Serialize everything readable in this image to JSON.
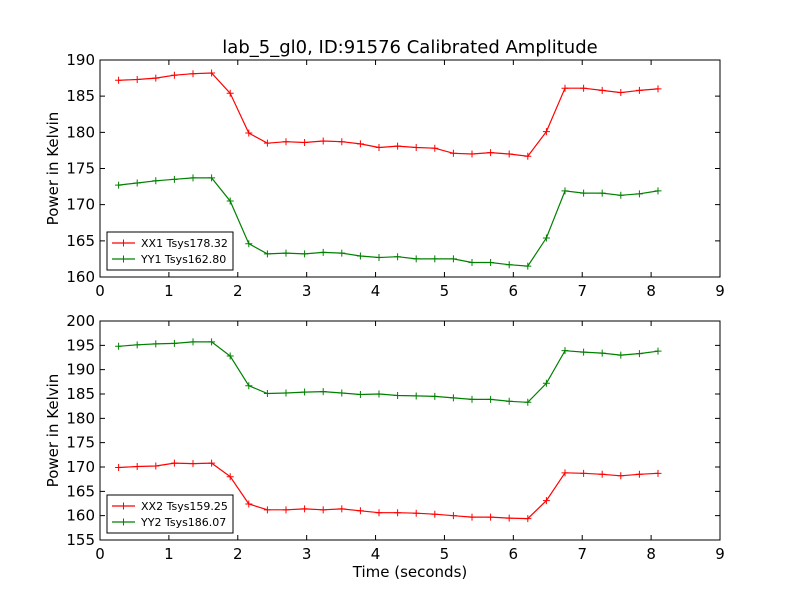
{
  "figure": {
    "title": "lab_5_gl0, ID:91576 Calibrated Amplitude",
    "xlabel": "Time (seconds)"
  },
  "chart_data": [
    {
      "type": "line",
      "ylabel": "Power in Kelvin",
      "xlim": [
        0,
        9
      ],
      "ylim": [
        160,
        190
      ],
      "xticks": [
        0,
        1,
        2,
        3,
        4,
        5,
        6,
        7,
        8,
        9
      ],
      "yticks": [
        160,
        165,
        170,
        175,
        180,
        185,
        190
      ],
      "legend_position": "lower-left",
      "x": [
        0.27,
        0.54,
        0.81,
        1.08,
        1.35,
        1.62,
        1.89,
        2.16,
        2.43,
        2.7,
        2.97,
        3.24,
        3.51,
        3.78,
        4.05,
        4.32,
        4.59,
        4.86,
        5.13,
        5.4,
        5.67,
        5.94,
        6.21,
        6.48,
        6.75,
        7.02,
        7.29,
        7.56,
        7.83,
        8.1
      ],
      "series": [
        {
          "name": "XX1 Tsys178.32",
          "color": "#ff0000",
          "values": [
            187.2,
            187.3,
            187.5,
            187.9,
            188.1,
            188.2,
            185.4,
            179.9,
            178.5,
            178.7,
            178.6,
            178.8,
            178.7,
            178.4,
            177.9,
            178.1,
            177.9,
            177.8,
            177.1,
            177.0,
            177.2,
            177.0,
            176.7,
            180.1,
            186.1,
            186.1,
            185.8,
            185.5,
            185.8,
            186.0
          ]
        },
        {
          "name": "YY1 Tsys162.80",
          "color": "#008000",
          "values": [
            172.7,
            173.0,
            173.3,
            173.5,
            173.7,
            173.7,
            170.5,
            164.6,
            163.2,
            163.3,
            163.2,
            163.4,
            163.3,
            162.9,
            162.7,
            162.8,
            162.5,
            162.5,
            162.5,
            162.0,
            162.0,
            161.7,
            161.5,
            165.4,
            171.9,
            171.6,
            171.6,
            171.3,
            171.5,
            171.9
          ]
        }
      ]
    },
    {
      "type": "line",
      "ylabel": "Power in Kelvin",
      "xlim": [
        0,
        9
      ],
      "ylim": [
        155,
        200
      ],
      "xticks": [
        0,
        1,
        2,
        3,
        4,
        5,
        6,
        7,
        8,
        9
      ],
      "yticks": [
        155,
        160,
        165,
        170,
        175,
        180,
        185,
        190,
        195,
        200
      ],
      "legend_position": "lower-left",
      "x": [
        0.27,
        0.54,
        0.81,
        1.08,
        1.35,
        1.62,
        1.89,
        2.16,
        2.43,
        2.7,
        2.97,
        3.24,
        3.51,
        3.78,
        4.05,
        4.32,
        4.59,
        4.86,
        5.13,
        5.4,
        5.67,
        5.94,
        6.21,
        6.48,
        6.75,
        7.02,
        7.29,
        7.56,
        7.83,
        8.1
      ],
      "series": [
        {
          "name": "XX2 Tsys159.25",
          "color": "#ff0000",
          "values": [
            169.9,
            170.1,
            170.2,
            170.8,
            170.7,
            170.8,
            168.0,
            162.4,
            161.2,
            161.2,
            161.4,
            161.2,
            161.4,
            161.0,
            160.6,
            160.6,
            160.5,
            160.3,
            160.0,
            159.7,
            159.7,
            159.5,
            159.4,
            163.1,
            168.8,
            168.7,
            168.5,
            168.2,
            168.5,
            168.7
          ]
        },
        {
          "name": "YY2 Tsys186.07",
          "color": "#008000",
          "values": [
            194.8,
            195.1,
            195.3,
            195.4,
            195.7,
            195.7,
            192.8,
            186.7,
            185.1,
            185.2,
            185.4,
            185.5,
            185.2,
            184.9,
            185.0,
            184.7,
            184.6,
            184.5,
            184.2,
            183.9,
            183.9,
            183.5,
            183.3,
            187.2,
            193.9,
            193.6,
            193.4,
            193.0,
            193.3,
            193.8
          ]
        }
      ]
    }
  ]
}
